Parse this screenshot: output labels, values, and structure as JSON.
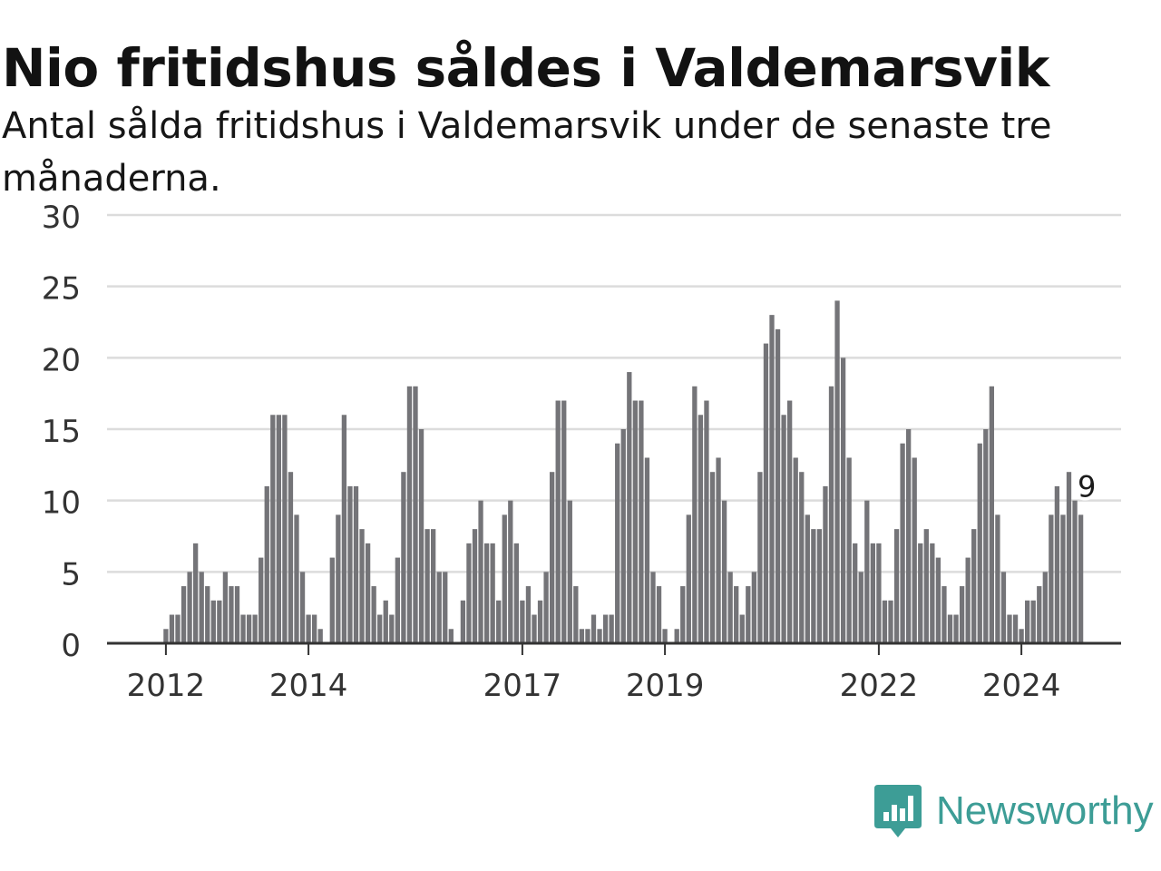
{
  "title": "Nio fritidshus såldes i Valdemarsvik",
  "subtitle": "Antal sålda fritidshus i Valdemarsvik under de senaste tre månaderna.",
  "logo": {
    "text": "Newsworthy",
    "icon": "chart-speech-bubble-icon"
  },
  "colors": {
    "bar": "#747478",
    "highlight": "#17a396",
    "grid": "#dcdcdc",
    "axis": "#333333",
    "logo": "#3d9d96"
  },
  "chart_data": {
    "type": "bar",
    "title": "Nio fritidshus såldes i Valdemarsvik",
    "subtitle": "Antal sålda fritidshus i Valdemarsvik under de senaste tre månaderna.",
    "xlabel": "",
    "ylabel": "",
    "start": "2011-05",
    "ylim": [
      0,
      30
    ],
    "yticks": [
      0,
      5,
      10,
      15,
      20,
      25,
      30
    ],
    "xticks": [
      {
        "label": "2012",
        "date": "2012-01"
      },
      {
        "label": "2014",
        "date": "2014-01"
      },
      {
        "label": "2017",
        "date": "2017-01"
      },
      {
        "label": "2019",
        "date": "2019-01"
      },
      {
        "label": "2022",
        "date": "2022-01"
      },
      {
        "label": "2024",
        "date": "2024-01"
      }
    ],
    "grid": true,
    "highlight": {
      "date": "2024-12",
      "value": 9,
      "label": "9"
    },
    "values": [
      0,
      0,
      0,
      0,
      0,
      0,
      0,
      0,
      1,
      2,
      2,
      4,
      5,
      7,
      5,
      4,
      3,
      3,
      5,
      4,
      4,
      2,
      2,
      2,
      6,
      11,
      16,
      16,
      16,
      12,
      9,
      5,
      2,
      2,
      1,
      0,
      6,
      9,
      16,
      11,
      11,
      8,
      7,
      4,
      2,
      3,
      2,
      6,
      12,
      18,
      18,
      15,
      8,
      8,
      5,
      5,
      1,
      0,
      3,
      7,
      8,
      10,
      7,
      7,
      3,
      9,
      10,
      7,
      3,
      4,
      2,
      3,
      5,
      12,
      17,
      17,
      10,
      4,
      1,
      1,
      2,
      1,
      2,
      2,
      14,
      15,
      19,
      17,
      17,
      13,
      5,
      4,
      1,
      0,
      1,
      4,
      9,
      18,
      16,
      17,
      12,
      13,
      10,
      5,
      4,
      2,
      4,
      5,
      12,
      21,
      23,
      22,
      16,
      17,
      13,
      12,
      9,
      8,
      8,
      11,
      18,
      24,
      20,
      13,
      7,
      5,
      10,
      7,
      7,
      3,
      3,
      8,
      14,
      15,
      13,
      7,
      8,
      7,
      6,
      4,
      2,
      2,
      4,
      6,
      8,
      14,
      15,
      18,
      9,
      5,
      2,
      2,
      1,
      3,
      3,
      4,
      5,
      9,
      11,
      9,
      12,
      10,
      9
    ]
  }
}
